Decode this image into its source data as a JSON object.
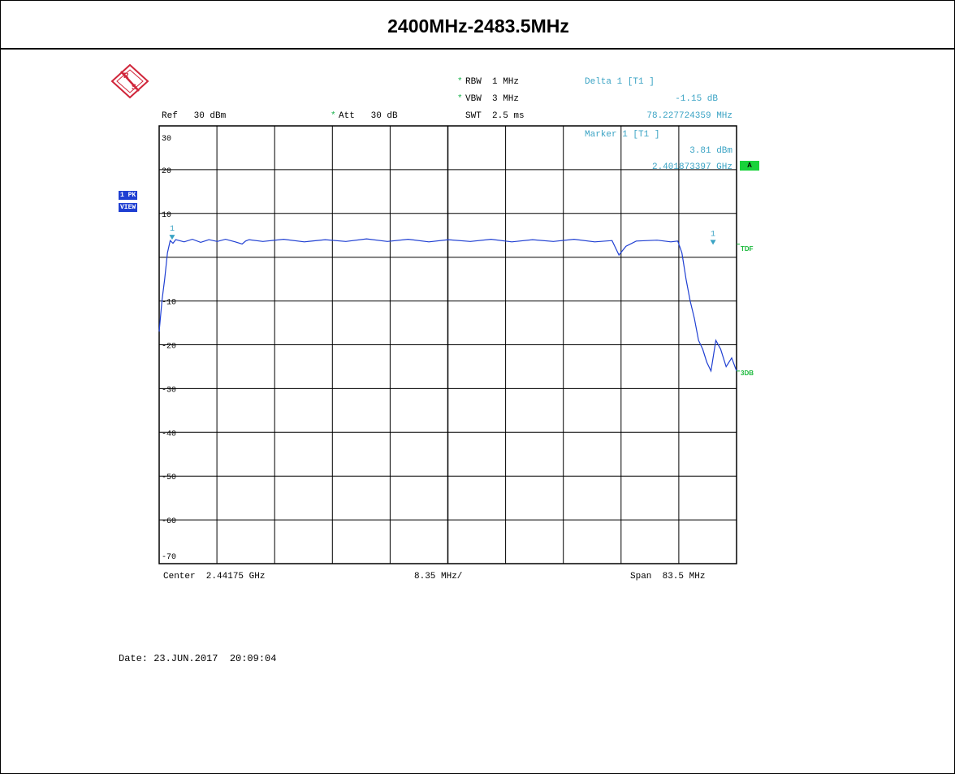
{
  "page": {
    "title": "2400MHz-2483.5MHz"
  },
  "header": {
    "ref": "Ref   30 dBm",
    "att_star": "*",
    "att": "Att   30 dB",
    "rbw_star": "*",
    "rbw": "RBW  1 MHz",
    "vbw_star": "*",
    "vbw": "VBW  3 MHz",
    "swt": "SWT  2.5 ms",
    "delta_title": "Delta 1 [T1 ]",
    "delta_level": "-1.15 dB",
    "delta_freq": "78.227724359 MHz",
    "marker_title": "Marker 1 [T1 ]",
    "marker_level": "3.81 dBm",
    "marker_freq": "2.401873397 GHz"
  },
  "badges": {
    "trace_mode_1": "1 PK",
    "trace_mode_2": "VIEW",
    "trace_a": "A",
    "tdf": "TDF",
    "db3": "3DB"
  },
  "footer": {
    "center": "Center  2.44175 GHz",
    "div": "8.35 MHz/",
    "span": "Span  83.5 MHz",
    "date": "Date: 23.JUN.2017  20:09:04"
  },
  "colors": {
    "trace": "#1f3fd2",
    "grid": "#000000",
    "marker": "#3aa3c4",
    "accent_green": "#19d23a"
  },
  "icons": {
    "logo": "rohde-schwarz-logo-icon"
  },
  "chart_data": {
    "type": "line",
    "xlabel": "",
    "ylabel": "",
    "x_unit": "GHz",
    "y_unit": "dBm",
    "xlim": [
      2.4,
      2.4835
    ],
    "ylim": [
      -70,
      30
    ],
    "y_ticks": [
      30,
      20,
      10,
      0,
      -10,
      -20,
      -30,
      -40,
      -50,
      -60,
      -70
    ],
    "y_tick_labels": [
      "30",
      "20",
      "10",
      "",
      "-10",
      "-20",
      "-30",
      "-40",
      "-50",
      "-60",
      "-70"
    ],
    "grid": true,
    "series": [
      {
        "x": [
          2.4,
          2.4004,
          2.4008,
          2.4012,
          2.4016,
          2.402,
          2.4024,
          2.4036,
          2.4048,
          2.406,
          2.4072,
          2.4084,
          2.4096,
          2.411,
          2.412,
          2.4125,
          2.413,
          2.415,
          2.418,
          2.421,
          2.424,
          2.427,
          2.43,
          2.433,
          2.436,
          2.439,
          2.4418,
          2.445,
          2.448,
          2.451,
          2.454,
          2.457,
          2.46,
          2.463,
          2.4655,
          2.4665,
          2.4675,
          2.469,
          2.472,
          2.474,
          2.475,
          2.4756,
          2.4762,
          2.4768,
          2.4774,
          2.478,
          2.4786,
          2.4792,
          2.4798,
          2.4805,
          2.4812,
          2.482,
          2.4828,
          2.4835
        ],
        "y": [
          -17,
          -10,
          -5,
          1,
          3.8,
          3.2,
          4,
          3.5,
          4.1,
          3.4,
          4,
          3.6,
          4.1,
          3.5,
          3,
          3.7,
          4,
          3.6,
          4.1,
          3.5,
          4,
          3.6,
          4.2,
          3.6,
          4.1,
          3.5,
          4,
          3.6,
          4.1,
          3.5,
          4,
          3.6,
          4.1,
          3.5,
          3.8,
          0.5,
          2.5,
          3.7,
          3.9,
          3.5,
          3.7,
          1,
          -5,
          -10,
          -14,
          -19,
          -21,
          -24,
          -26,
          -19,
          -21,
          -25,
          -23,
          -26
        ]
      }
    ],
    "markers": [
      {
        "label": "1",
        "x": 2.401873397,
        "y": 3.81,
        "role": "marker"
      },
      {
        "label": "1",
        "x": 2.480101121,
        "y": 2.66,
        "role": "delta"
      }
    ],
    "lines": [
      {
        "label": "TDF",
        "y": 3
      },
      {
        "label": "3DB",
        "y": -26
      }
    ]
  }
}
